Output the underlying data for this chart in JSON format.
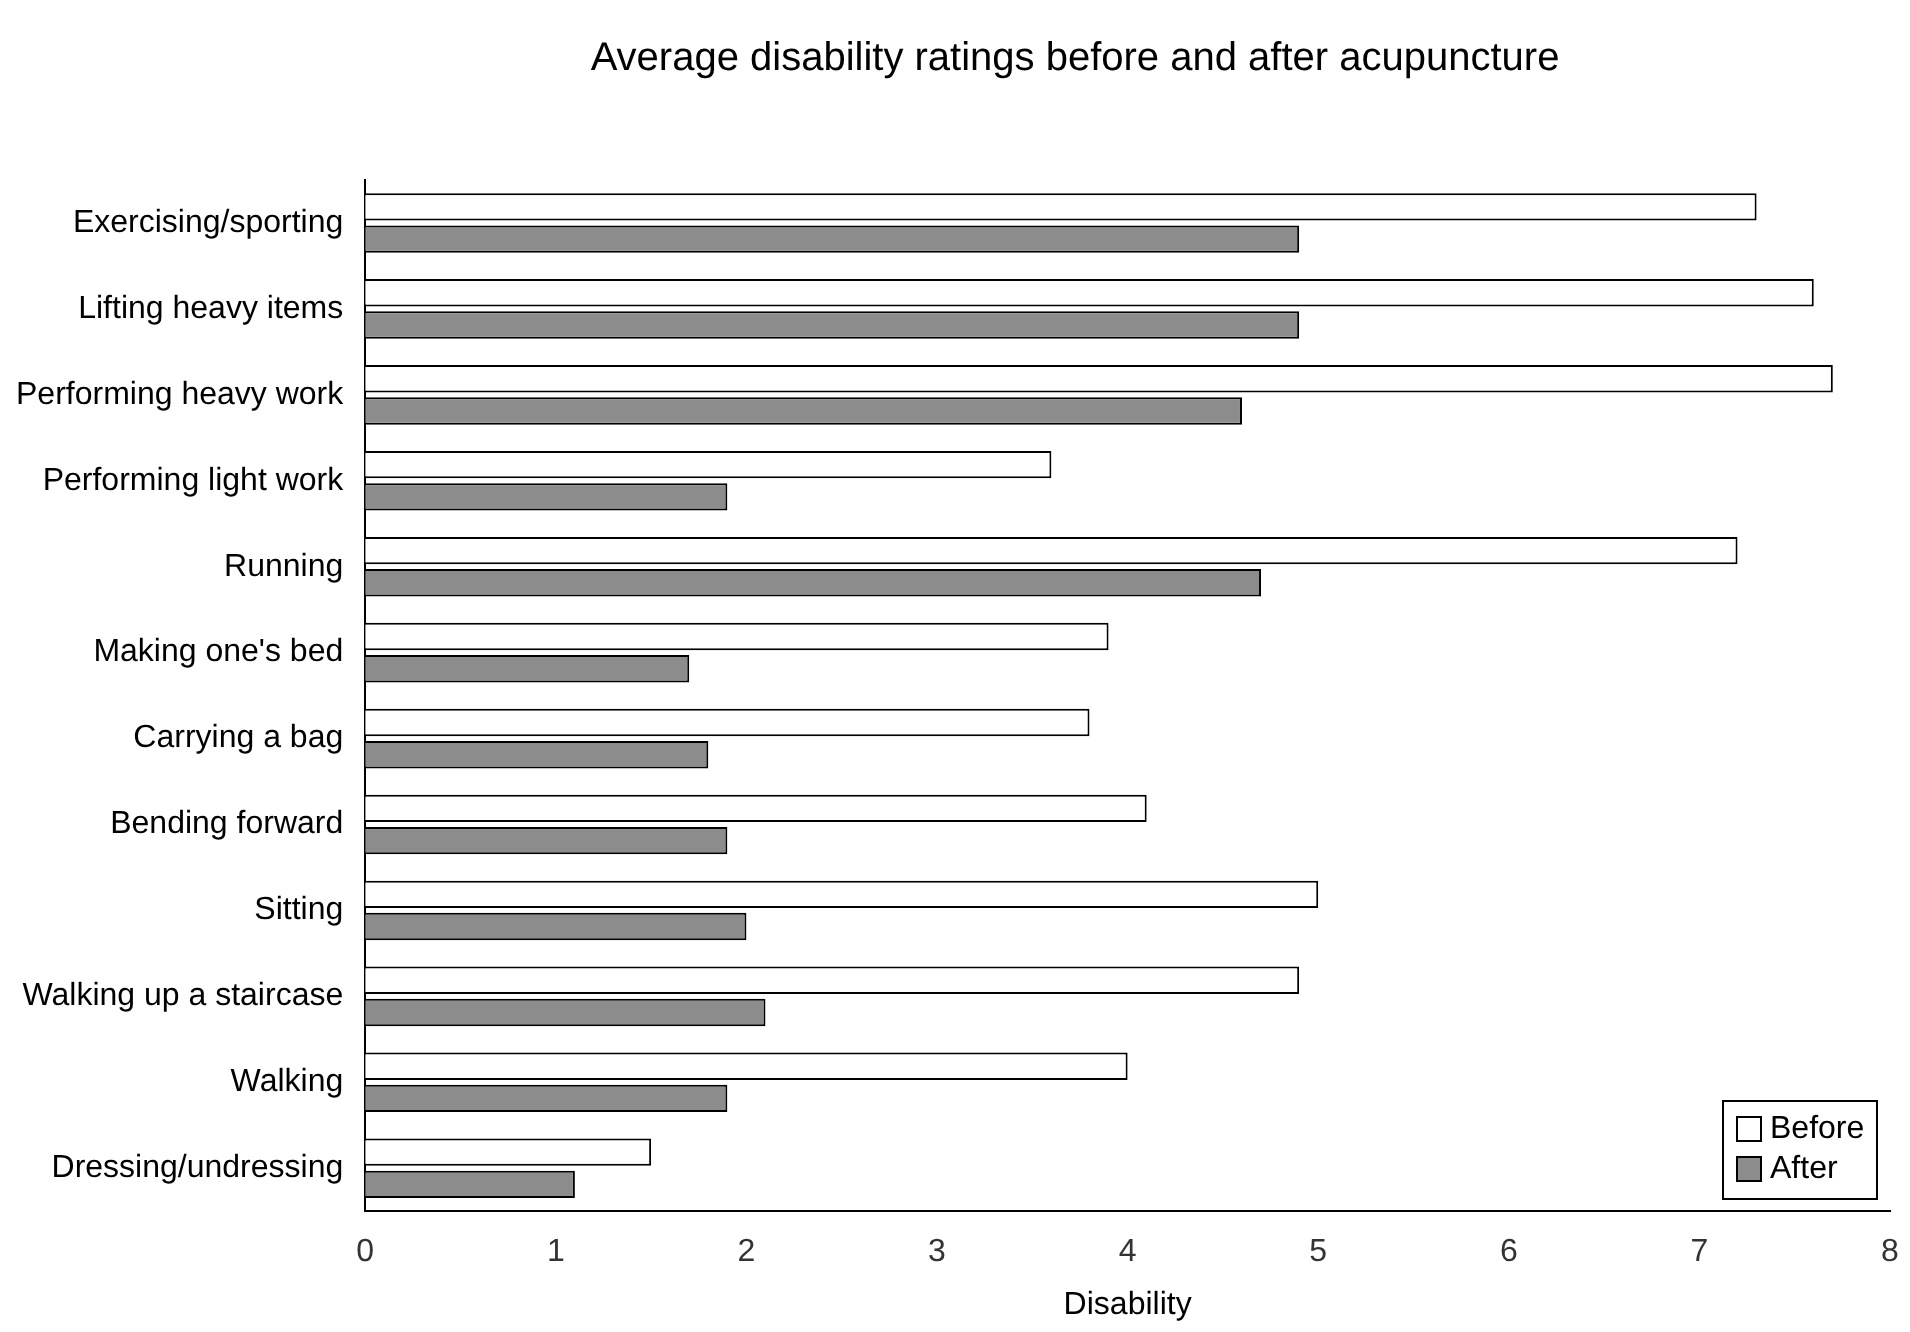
{
  "chart_data": {
    "type": "bar",
    "orientation": "horizontal",
    "title": "Average disability ratings before and after acupuncture",
    "xlabel": "Disability",
    "categories": [
      "Exercising/sporting",
      "Lifting heavy items",
      "Performing heavy work",
      "Performing light work",
      "Running",
      "Making one's bed",
      "Carrying a bag",
      "Bending forward",
      "Sitting",
      "Walking up a staircase",
      "Walking",
      "Dressing/undressing"
    ],
    "series": [
      {
        "name": "Before",
        "color": "#ffffff",
        "values": [
          7.3,
          7.6,
          7.7,
          3.6,
          7.2,
          3.9,
          3.8,
          4.1,
          5.0,
          4.9,
          4.0,
          1.5
        ]
      },
      {
        "name": "After",
        "color": "#8c8c8c",
        "values": [
          4.9,
          4.9,
          4.6,
          1.9,
          4.7,
          1.7,
          1.8,
          1.9,
          2.0,
          2.1,
          1.9,
          1.1
        ]
      }
    ],
    "xlim": [
      0,
      8
    ],
    "xticks": [
      0,
      1,
      2,
      3,
      4,
      5,
      6,
      7,
      8
    ],
    "grid": false,
    "legend": "bottom right"
  }
}
